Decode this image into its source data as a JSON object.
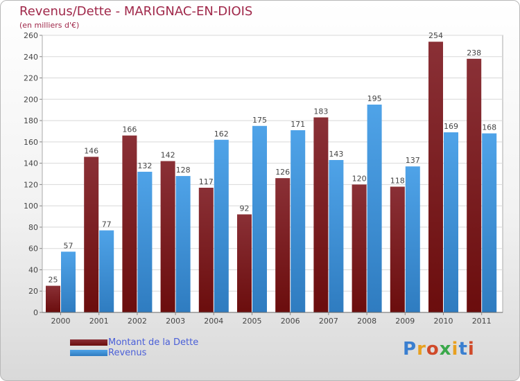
{
  "chart_data": {
    "type": "bar",
    "title": "Revenus/Dette - MARIGNAC-EN-DIOIS",
    "subtitle": "(en milliers d'€)",
    "categories": [
      "2000",
      "2001",
      "2002",
      "2003",
      "2004",
      "2005",
      "2006",
      "2007",
      "2008",
      "2009",
      "2010",
      "2011"
    ],
    "series": [
      {
        "name": "Montant de la Dette",
        "color": "#6b0d0d",
        "values": [
          25,
          146,
          166,
          142,
          117,
          92,
          126,
          183,
          120,
          118,
          254,
          238
        ]
      },
      {
        "name": "Revenus",
        "color": "#4fa3e8",
        "values": [
          57,
          77,
          132,
          128,
          162,
          175,
          171,
          143,
          195,
          137,
          169,
          168
        ]
      }
    ],
    "ylim": [
      0,
      260
    ],
    "yticks": [
      0,
      20,
      40,
      60,
      80,
      100,
      120,
      140,
      160,
      180,
      200,
      220,
      240,
      260
    ],
    "grid": true,
    "legend_position": "bottom-left"
  },
  "branding": {
    "logo_letters": [
      "P",
      "r",
      "o",
      "x",
      "i",
      "t",
      "i"
    ],
    "logo_colors": [
      "#3a7fd0",
      "#e8a020",
      "#d04a2a",
      "#3aa84a",
      "#e8a020",
      "#3a7fd0",
      "#d04a2a"
    ]
  }
}
